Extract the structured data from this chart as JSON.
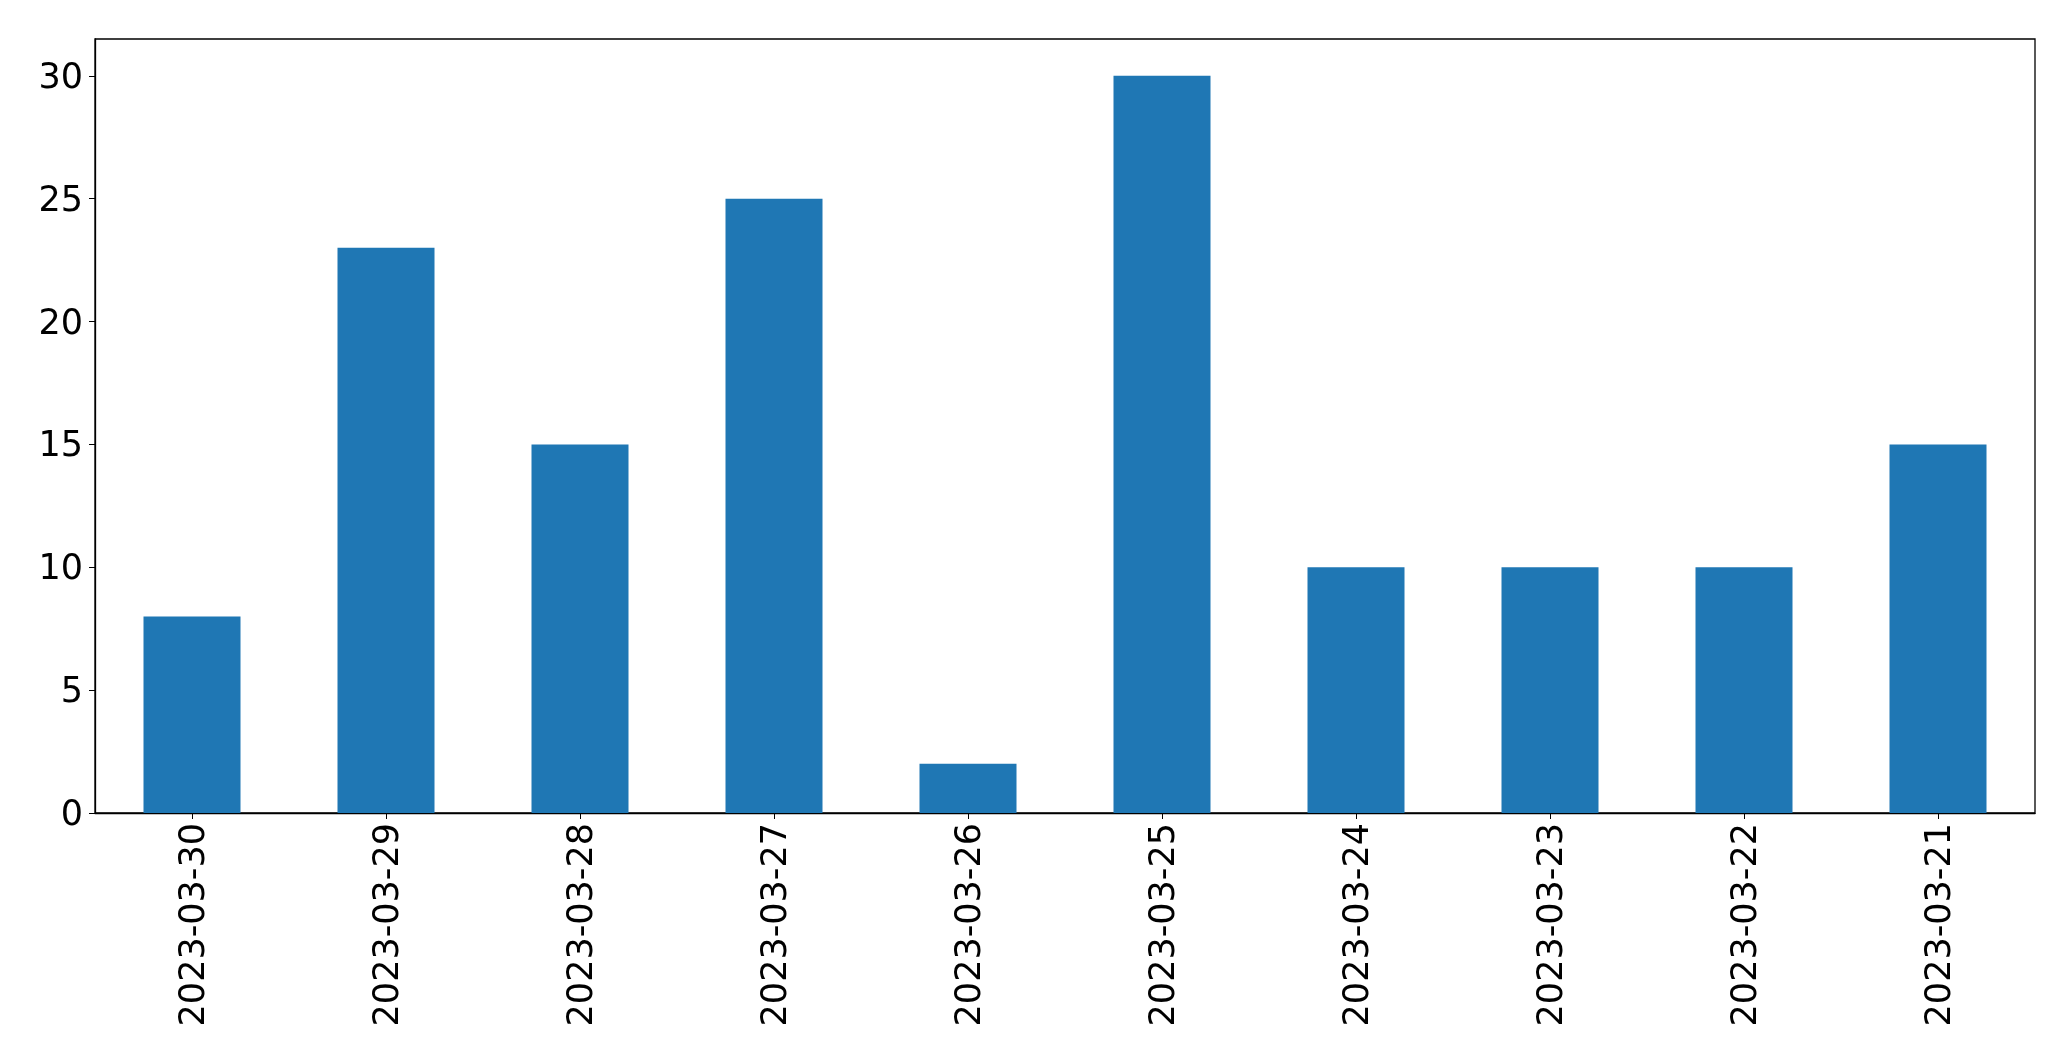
{
  "chart_data": {
    "type": "bar",
    "categories": [
      "2023-03-30",
      "2023-03-29",
      "2023-03-28",
      "2023-03-27",
      "2023-03-26",
      "2023-03-25",
      "2023-03-24",
      "2023-03-23",
      "2023-03-22",
      "2023-03-21"
    ],
    "values": [
      8,
      23,
      15,
      25,
      2,
      30,
      10,
      10,
      10,
      15
    ],
    "color": "#1f77b4",
    "ylim": [
      0,
      31.5
    ],
    "yticks": [
      0,
      5,
      10,
      15,
      20,
      25,
      30
    ],
    "grid": false
  }
}
